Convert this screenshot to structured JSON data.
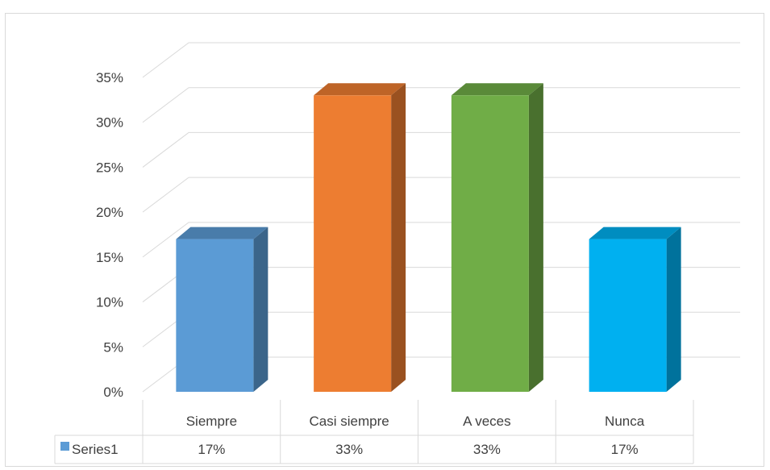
{
  "chart_data": {
    "type": "bar",
    "style": "3d-column",
    "categories": [
      "Siempre",
      "Casi siempre",
      "A veces",
      "Nunca"
    ],
    "series": [
      {
        "name": "Series1",
        "values": [
          0.17,
          0.33,
          0.33,
          0.17
        ],
        "value_labels": [
          "17%",
          "33%",
          "33%",
          "17%"
        ],
        "color": "#5b9bd5"
      }
    ],
    "bar_colors": [
      "#5b9bd5",
      "#ed7d31",
      "#70ad47",
      "#00b0f0"
    ],
    "y_ticks": [
      0,
      0.05,
      0.1,
      0.15,
      0.2,
      0.25,
      0.3,
      0.35
    ],
    "y_tick_labels": [
      "0%",
      "5%",
      "10%",
      "15%",
      "20%",
      "25%",
      "30%",
      "35%"
    ],
    "ylim": [
      0,
      0.35
    ],
    "grid": true,
    "legend": "data-table-below"
  }
}
